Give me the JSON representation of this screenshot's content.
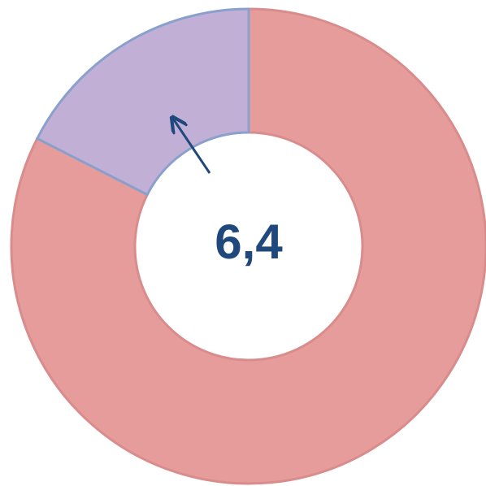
{
  "chart_data": {
    "type": "donut",
    "categories": [
      null,
      null
    ],
    "values": [
      82.5,
      17.5
    ],
    "colors": [
      "#e69c9b",
      "#c2afd6"
    ],
    "annotation": "6,4"
  }
}
